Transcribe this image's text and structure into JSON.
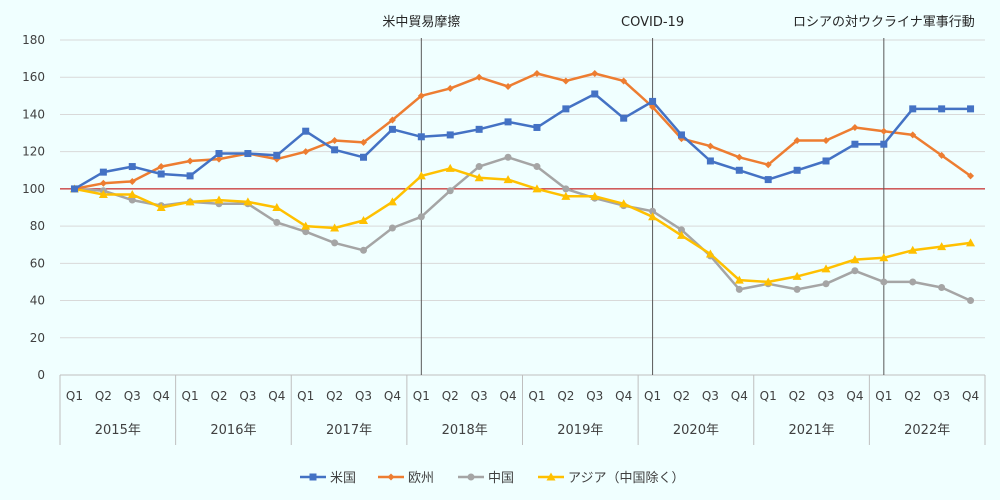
{
  "chart_data": {
    "type": "line",
    "title": "",
    "xlabel": "",
    "ylabel": "",
    "ylim": [
      0,
      180
    ],
    "yticks": [
      0,
      20,
      40,
      60,
      80,
      100,
      120,
      140,
      160,
      180
    ],
    "grid": true,
    "legend_position": "bottom",
    "reference_line": {
      "value": 100,
      "color": "#c00000"
    },
    "quarters": [
      "Q1",
      "Q2",
      "Q3",
      "Q4"
    ],
    "years": [
      "2015年",
      "2016年",
      "2017年",
      "2018年",
      "2019年",
      "2020年",
      "2021年",
      "2022年"
    ],
    "annotations": [
      {
        "label": "米中貿易摩擦",
        "year": "2018年",
        "quarter": "Q1"
      },
      {
        "label": "COVID-19",
        "year": "2020年",
        "quarter": "Q1"
      },
      {
        "label": "ロシアの対ウクライナ軍事行動",
        "year": "2022年",
        "quarter": "Q1"
      }
    ],
    "series": [
      {
        "name": "米国",
        "color": "#4472c4",
        "marker": "square",
        "values": [
          100,
          109,
          112,
          108,
          107,
          119,
          119,
          118,
          131,
          121,
          117,
          132,
          128,
          129,
          132,
          136,
          133,
          143,
          151,
          138,
          147,
          129,
          115,
          110,
          105,
          110,
          115,
          124,
          124,
          143,
          143,
          143
        ]
      },
      {
        "name": "欧州",
        "color": "#ed7d31",
        "marker": "diamond",
        "values": [
          100,
          103,
          104,
          112,
          115,
          116,
          119,
          116,
          120,
          126,
          125,
          137,
          150,
          154,
          160,
          155,
          162,
          158,
          162,
          158,
          144,
          127,
          123,
          117,
          113,
          126,
          126,
          133,
          131,
          129,
          118,
          107
        ]
      },
      {
        "name": "中国",
        "color": "#a5a5a5",
        "marker": "circle",
        "values": [
          100,
          99,
          94,
          91,
          93,
          92,
          92,
          82,
          77,
          71,
          67,
          79,
          85,
          99,
          112,
          117,
          112,
          100,
          95,
          91,
          88,
          78,
          64,
          46,
          49,
          46,
          49,
          56,
          50,
          50,
          47,
          40
        ]
      },
      {
        "name": "アジア（中国除く）",
        "color": "#ffc000",
        "marker": "triangle",
        "values": [
          100,
          97,
          97,
          90,
          93,
          94,
          93,
          90,
          80,
          79,
          83,
          93,
          107,
          111,
          106,
          105,
          100,
          96,
          96,
          92,
          85,
          75,
          65,
          51,
          50,
          53,
          57,
          62,
          63,
          67,
          69,
          71
        ]
      }
    ]
  }
}
